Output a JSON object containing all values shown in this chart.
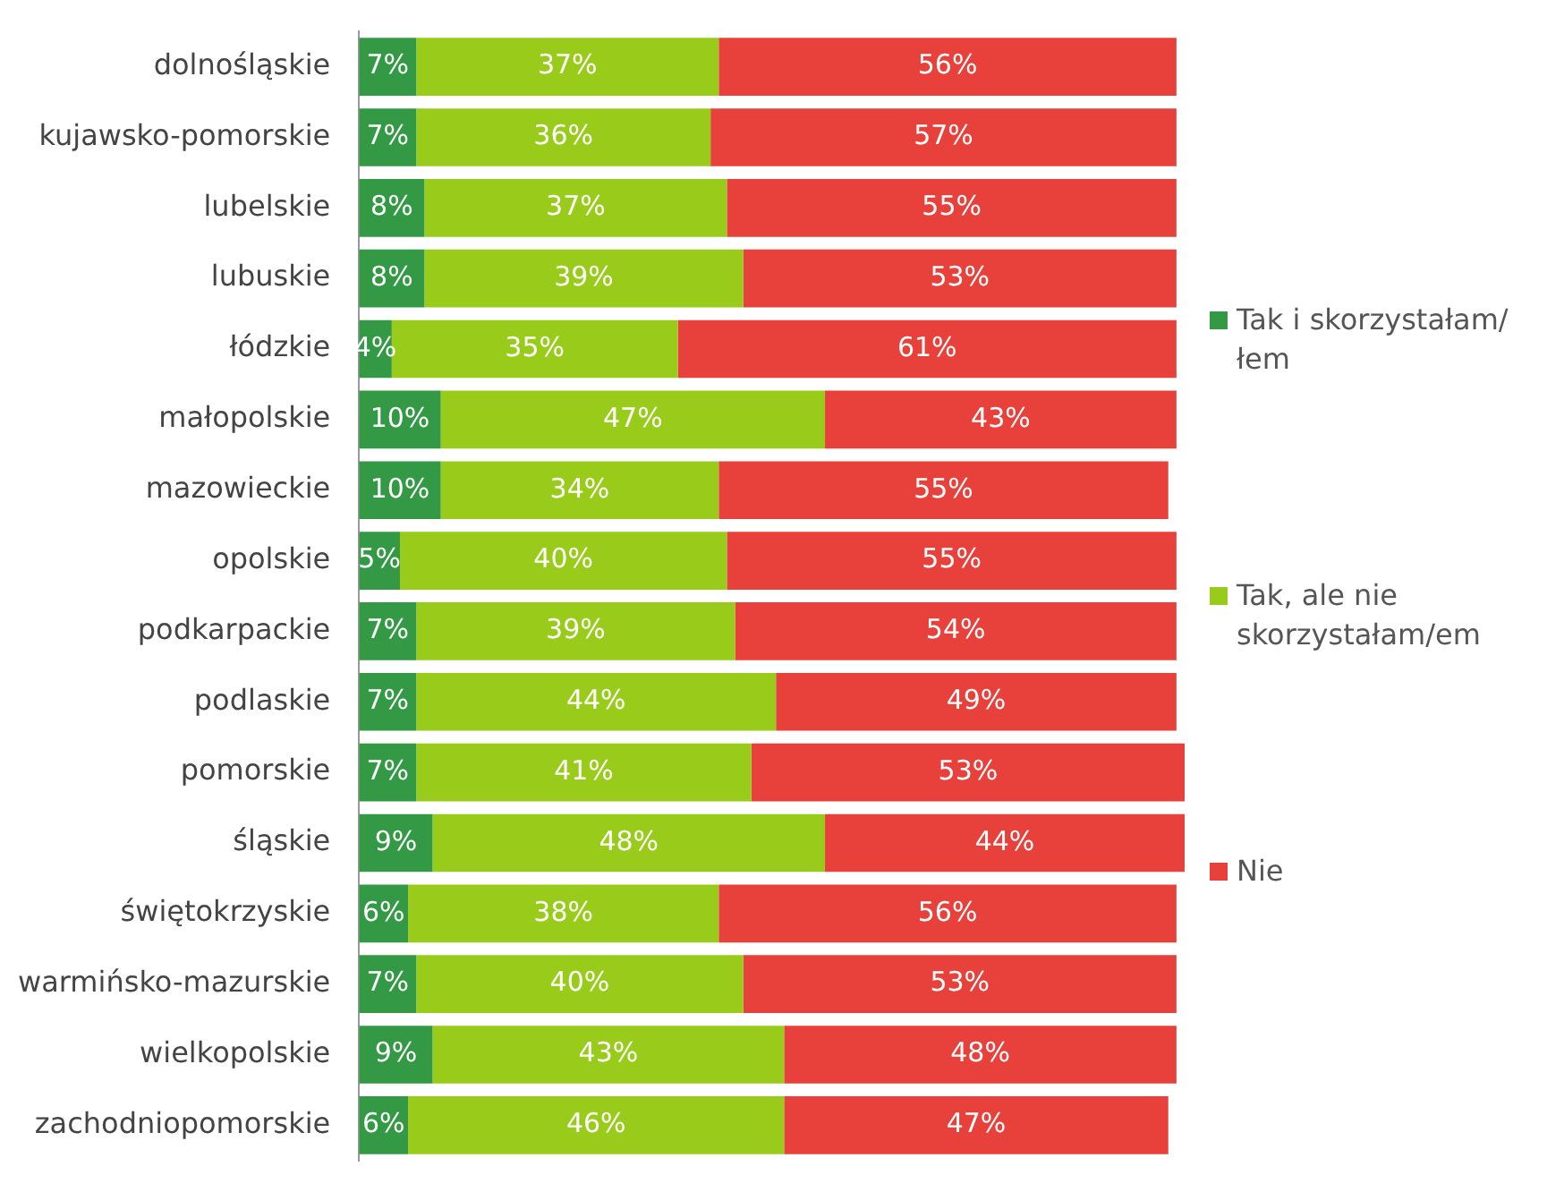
{
  "chart_data": {
    "type": "bar",
    "orientation": "horizontal",
    "stacked": true,
    "legend": "right",
    "categories": [
      "dolnośląskie",
      "kujawsko-pomorskie",
      "lubelskie",
      "lubuskie",
      "łódzkie",
      "małopolskie",
      "mazowieckie",
      "opolskie",
      "podkarpackie",
      "podlaskie",
      "pomorskie",
      "śląskie",
      "świętokrzyskie",
      "warmińsko-mazurskie",
      "wielkopolskie",
      "zachodniopomorskie"
    ],
    "series": [
      {
        "name": "Tak i skorzystałam/łem",
        "color": "#339945",
        "values": [
          7,
          7,
          8,
          8,
          4,
          10,
          10,
          5,
          7,
          7,
          7,
          9,
          6,
          7,
          9,
          6
        ],
        "value_labels": [
          "7%",
          "7%",
          "8%",
          "8%",
          "4%",
          "10%",
          "10%",
          "5%",
          "7%",
          "7%",
          "7%",
          "9%",
          "6%",
          "7%",
          "9%",
          "6%"
        ]
      },
      {
        "name": "Tak, ale nie skorzystałam/em",
        "color": "#99cc1a",
        "values": [
          37,
          36,
          37,
          39,
          35,
          47,
          34,
          40,
          39,
          44,
          41,
          48,
          38,
          40,
          43,
          46
        ],
        "value_labels": [
          "37%",
          "36%",
          "37%",
          "39%",
          "35%",
          "47%",
          "34%",
          "40%",
          "39%",
          "44%",
          "41%",
          "48%",
          "38%",
          "40%",
          "43%",
          "46%"
        ]
      },
      {
        "name": "Nie",
        "color": "#e8413c",
        "values": [
          56,
          57,
          55,
          53,
          61,
          43,
          55,
          55,
          54,
          49,
          53,
          44,
          56,
          53,
          48,
          47
        ],
        "value_labels": [
          "56%",
          "57%",
          "55%",
          "53%",
          "61%",
          "43%",
          "55%",
          "55%",
          "54%",
          "49%",
          "53%",
          "44%",
          "56%",
          "53%",
          "48%",
          "47%"
        ]
      }
    ]
  }
}
